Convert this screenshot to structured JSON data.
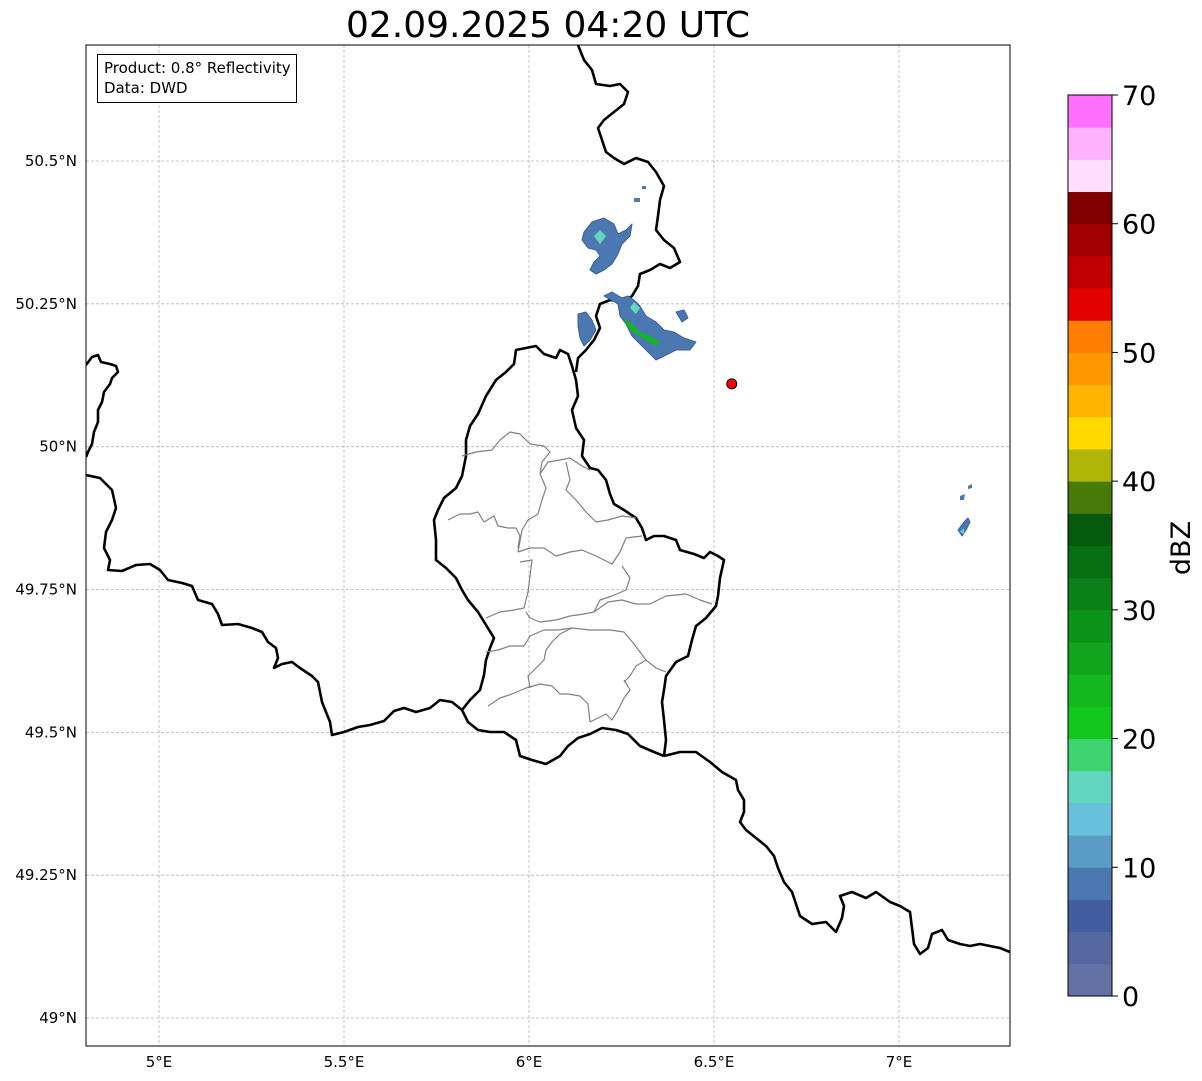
{
  "title": "02.09.2025 04:20 UTC",
  "info": {
    "product": "Product: 0.8° Reflectivity",
    "data": "Data: DWD"
  },
  "map": {
    "lon_range": [
      4.8,
      7.3
    ],
    "lat_range": [
      48.95,
      50.7
    ],
    "x_ticks": [
      {
        "value": 5.0,
        "label": "5°E"
      },
      {
        "value": 5.5,
        "label": "5.5°E"
      },
      {
        "value": 6.0,
        "label": "6°E"
      },
      {
        "value": 6.5,
        "label": "6.5°E"
      },
      {
        "value": 7.0,
        "label": "7°E"
      }
    ],
    "y_ticks": [
      {
        "value": 49.0,
        "label": "49°N"
      },
      {
        "value": 49.25,
        "label": "49.25°N"
      },
      {
        "value": 49.5,
        "label": "49.5°N"
      },
      {
        "value": 49.75,
        "label": "49.75°N"
      },
      {
        "value": 50.0,
        "label": "50°N"
      },
      {
        "value": 50.25,
        "label": "50.25°N"
      },
      {
        "value": 50.5,
        "label": "50.5°N"
      }
    ],
    "gridlines": true,
    "radar_site": {
      "lon": 6.548,
      "lat": 50.11,
      "color": "#ff0000"
    }
  },
  "colorbar": {
    "label": "dBZ",
    "min": 0,
    "max": 70,
    "step": 2.5,
    "tick_labels": [
      "0",
      "10",
      "20",
      "30",
      "40",
      "50",
      "60",
      "70"
    ],
    "colors": [
      "#6471a5",
      "#5568a0",
      "#425da0",
      "#4b78b0",
      "#5a9cc6",
      "#67c1dc",
      "#63d6c1",
      "#3dd46f",
      "#12c81f",
      "#12b81e",
      "#10a51c",
      "#0d9318",
      "#0b8016",
      "#086e12",
      "#055a0d",
      "#487a0a",
      "#b0b50a",
      "#ffd900",
      "#ffb500",
      "#ff9800",
      "#ff7d00",
      "#e30000",
      "#c00000",
      "#a00000",
      "#800000",
      "#ffdeff",
      "#ffb3ff",
      "#ff70ff",
      "#eb38eb"
    ]
  }
}
